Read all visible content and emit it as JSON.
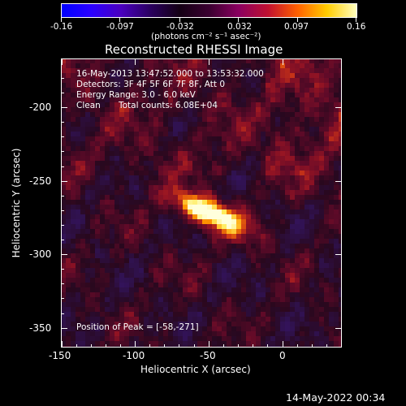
{
  "colorbar": {
    "tick_labels": [
      "-0.16",
      "-0.097",
      "-0.032",
      "0.032",
      "0.097",
      "0.16"
    ],
    "unit_label": "(photons cm⁻² s⁻¹ asec⁻²)",
    "colormap": [
      "#0000ff",
      "#2a00ff",
      "#4a00c0",
      "#2a0060",
      "#140014",
      "#3a0030",
      "#8a0060",
      "#c01030",
      "#ff6000",
      "#ffcc00",
      "#ffffc0"
    ]
  },
  "plot": {
    "title": "Reconstructed RHESSI Image",
    "info_lines": [
      "16-May-2013 13:47:52.000 to 13:53:32.000",
      "Detectors: 3F 4F 5F 6F 7F 8F, Att 0",
      "Energy Range: 3.0 - 6.0 keV"
    ],
    "clean_label": "Clean",
    "total_counts": "Total counts: 6.08E+04",
    "peak_label": "Position of Peak = [-58,-271]",
    "xlabel": "Heliocentric X (arcsec)",
    "ylabel": "Heliocentric Y (arcsec)",
    "x_tick_labels": [
      "-150",
      "-100",
      "-50",
      "0"
    ],
    "y_tick_labels": [
      "-200",
      "-250",
      "-300",
      "-350"
    ],
    "xlim": [
      -153,
      40
    ],
    "ylim": [
      -368,
      -168
    ],
    "peak": {
      "x": -58,
      "y": -271
    }
  },
  "footer": {
    "timestamp": "14-May-2022 00:34"
  }
}
